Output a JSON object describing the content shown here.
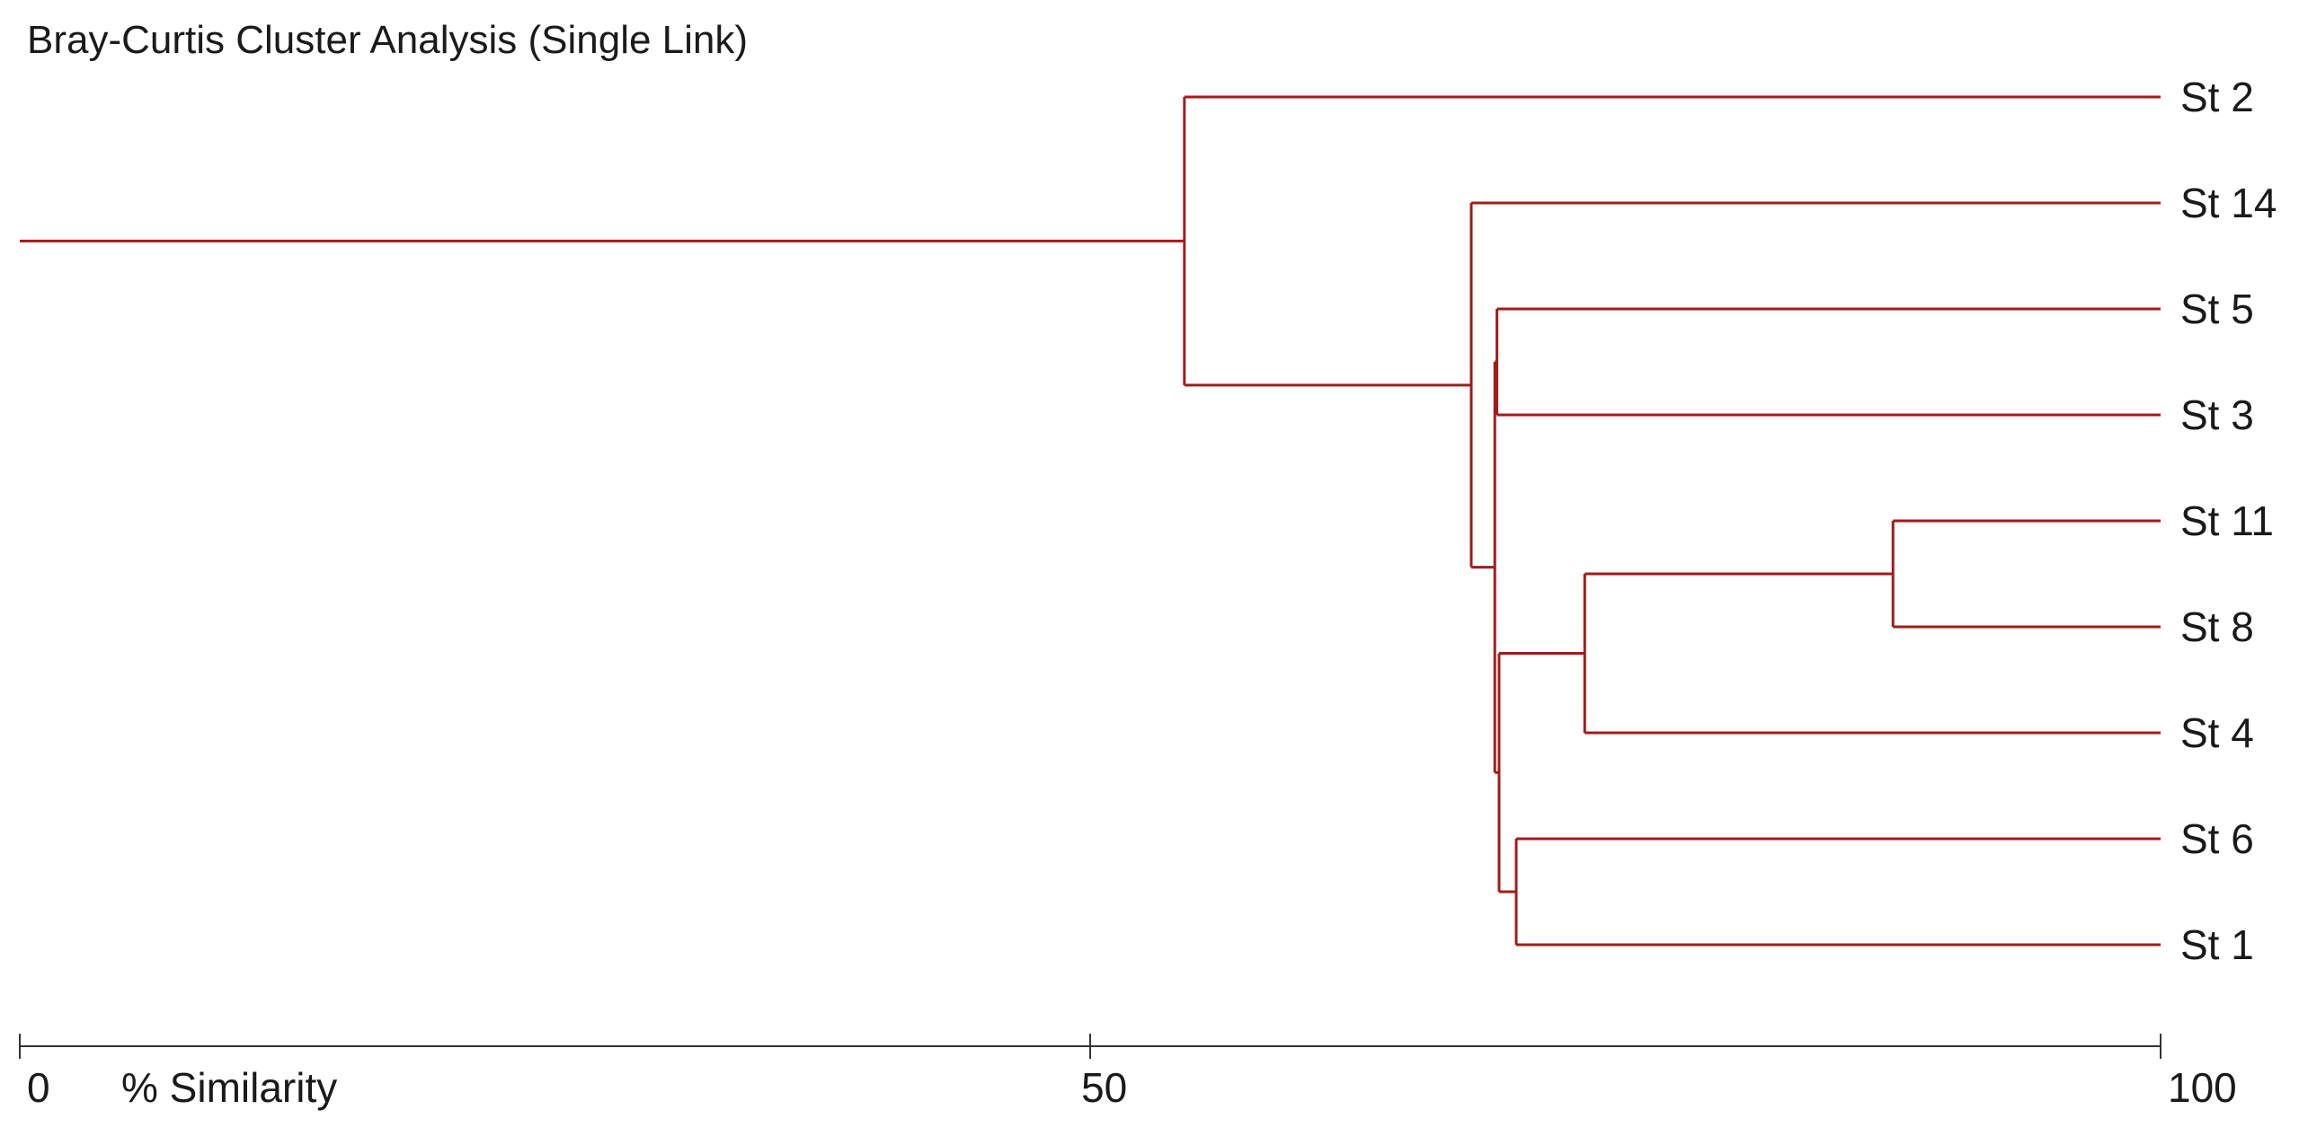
{
  "chart_data": {
    "type": "dendrogram",
    "title": "Bray-Curtis Cluster Analysis (Single Link)",
    "xlabel": "% Similarity",
    "xlim": [
      0,
      100
    ],
    "xticks": [
      {
        "value": 0,
        "label": "0"
      },
      {
        "value": 50,
        "label": "50"
      },
      {
        "value": 100,
        "label": "100"
      }
    ],
    "line_color": "#a01c1c",
    "leaves": [
      "St 2",
      "St 14",
      "St 5",
      "St 3",
      "St 11",
      "St 8",
      "St 4",
      "St 6",
      "St 1"
    ],
    "root_similarity": 0,
    "merges": [
      {
        "id": "m_11_8",
        "children": [
          "St 11",
          "St 8"
        ],
        "similarity": 87.5
      },
      {
        "id": "m_11_8_4",
        "children": [
          "m_11_8",
          "St 4"
        ],
        "similarity": 73.1
      },
      {
        "id": "m_6_1",
        "children": [
          "St 6",
          "St 1"
        ],
        "similarity": 69.9
      },
      {
        "id": "m_tight",
        "children": [
          "m_11_8_4",
          "m_6_1"
        ],
        "similarity": 69.1
      },
      {
        "id": "m_5_3",
        "children": [
          "St 5",
          "St 3"
        ],
        "similarity": 69.0
      },
      {
        "id": "m_mid",
        "children": [
          "m_5_3",
          "m_tight"
        ],
        "similarity": 68.9
      },
      {
        "id": "m_14",
        "children": [
          "St 14",
          "m_mid"
        ],
        "similarity": 67.8
      },
      {
        "id": "m_all",
        "children": [
          "St 2",
          "m_14"
        ],
        "similarity": 54.4
      }
    ]
  }
}
